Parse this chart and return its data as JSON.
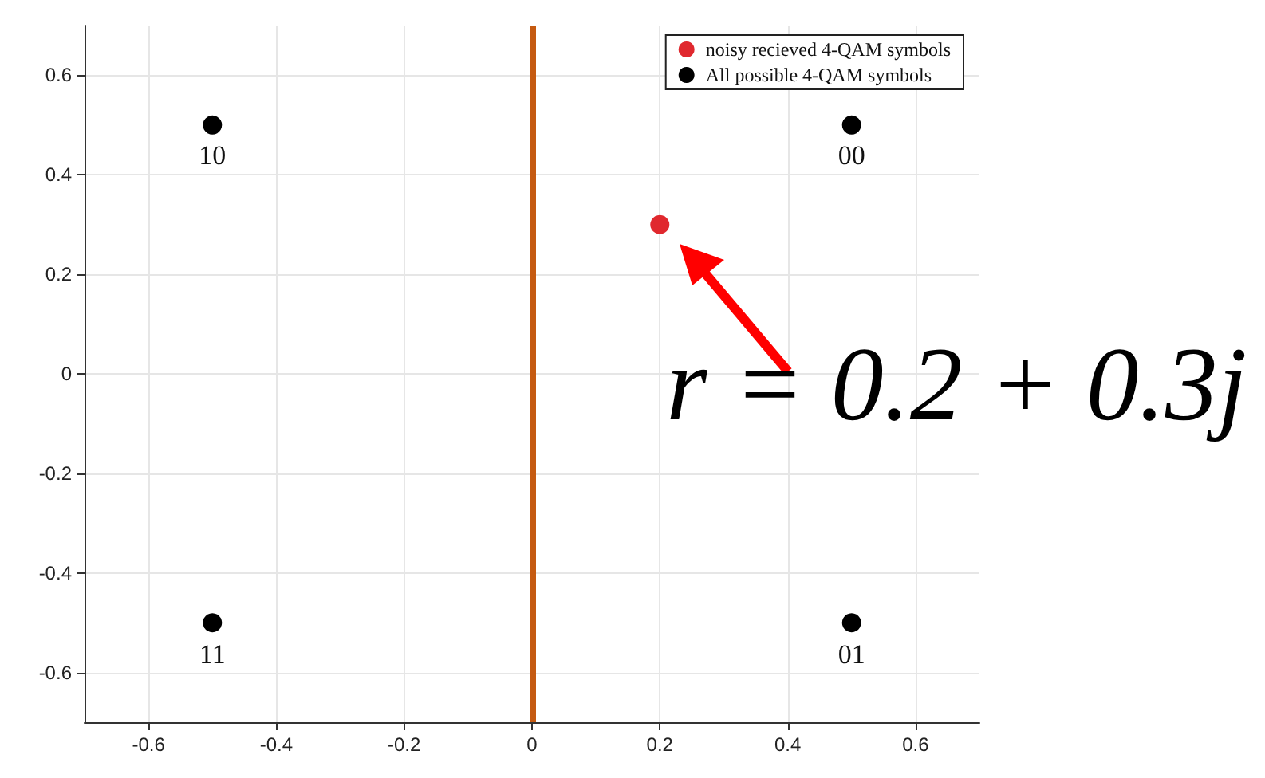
{
  "chart_data": {
    "type": "scatter",
    "xlim": [
      -0.7,
      0.7
    ],
    "ylim": [
      -0.7,
      0.7
    ],
    "xticks": [
      -0.6,
      -0.4,
      -0.2,
      0,
      0.2,
      0.4,
      0.6
    ],
    "yticks": [
      -0.6,
      -0.4,
      -0.2,
      0,
      0.2,
      0.4,
      0.6
    ],
    "grid": true,
    "legend": "top right",
    "marker": "circle",
    "series": [
      {
        "name": "noisy recieved 4-QAM symbols",
        "color": "#e0282e",
        "x": [
          0.2
        ],
        "values": [
          0.3
        ]
      },
      {
        "name": "All possible 4-QAM symbols",
        "color": "#000000",
        "x": [
          -0.5,
          0.5,
          -0.5,
          0.5
        ],
        "values": [
          0.5,
          0.5,
          -0.5,
          -0.5
        ]
      }
    ],
    "ref_lines": [
      {
        "axis": "x",
        "value": 0,
        "color": "#c55a11"
      }
    ],
    "annotations": [
      {
        "text": "10",
        "x": -0.5,
        "y": 0.5
      },
      {
        "text": "00",
        "x": 0.5,
        "y": 0.5
      },
      {
        "text": "11",
        "x": -0.5,
        "y": -0.5
      },
      {
        "text": "01",
        "x": 0.5,
        "y": -0.5
      },
      {
        "text": "r = 0.2 + 0.3j",
        "x": 0.2,
        "y": 0.3
      }
    ]
  }
}
